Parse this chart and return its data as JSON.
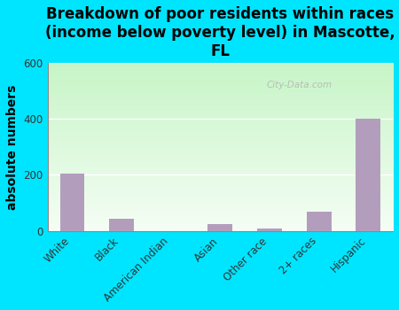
{
  "title": "Breakdown of poor residents within races\n(income below poverty level) in Mascotte,\nFL",
  "ylabel": "absolute numbers",
  "categories": [
    "White",
    "Black",
    "American Indian",
    "Asian",
    "Other race",
    "2+ races",
    "Hispanic"
  ],
  "values": [
    205,
    45,
    0,
    25,
    8,
    70,
    400
  ],
  "bar_color": "#b39dbd",
  "ylim": [
    0,
    600
  ],
  "yticks": [
    0,
    200,
    400,
    600
  ],
  "background_cyan": "#00e5ff",
  "plot_bg_top": "#c8f5c8",
  "plot_bg_bottom": "#f5fdf5",
  "watermark": "City-Data.com",
  "title_fontsize": 12,
  "ylabel_fontsize": 10,
  "tick_fontsize": 8.5
}
